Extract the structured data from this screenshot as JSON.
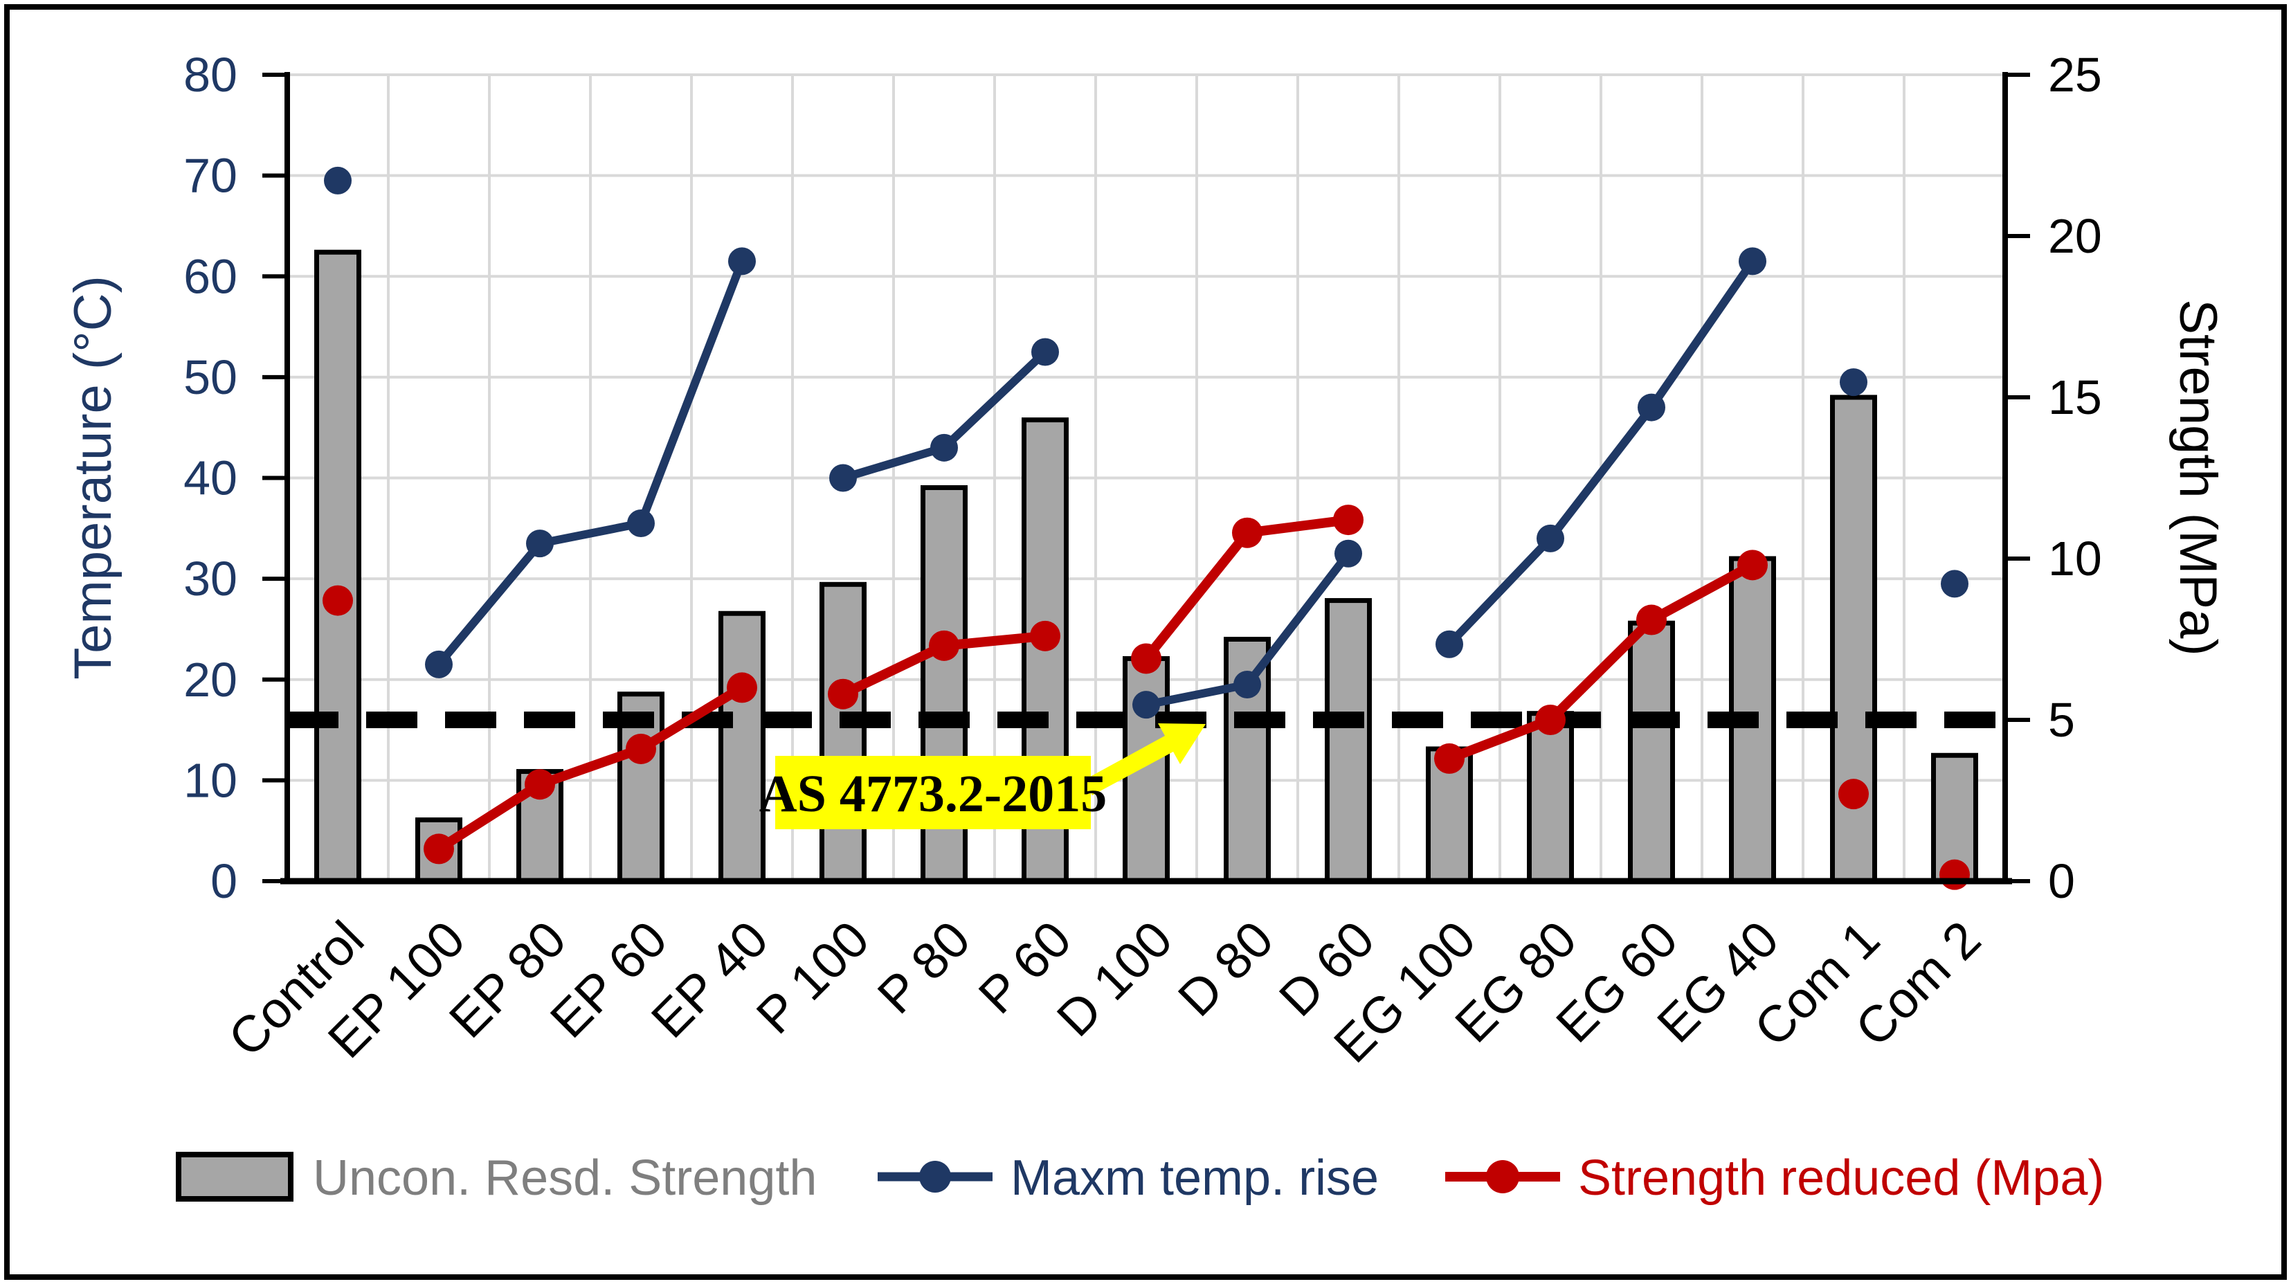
{
  "figure": {
    "background": "#ffffff",
    "border_color": "#000000"
  },
  "chart_data": {
    "type": "bar+line combo, dual axis",
    "categories": [
      "Control",
      "EP 100",
      "EP 80",
      "EP 60",
      "EP 40",
      "P 100",
      "P 80",
      "P 60",
      "D 100",
      "D 80",
      "D 60",
      "EG 100",
      "EG 80",
      "EG 60",
      "EG 40",
      "Com 1",
      "Com 2"
    ],
    "series": [
      {
        "name": "Uncon. Resd. Strength",
        "type": "bar",
        "axis": "right",
        "unit": "MPa",
        "color": "#a6a6a6",
        "border_color": "#000000",
        "values": [
          19.5,
          1.9,
          3.4,
          5.8,
          8.3,
          9.2,
          12.2,
          14.3,
          6.9,
          7.5,
          8.7,
          4.1,
          5.2,
          8.0,
          10.0,
          15.0,
          3.9
        ]
      },
      {
        "name": "Maxm temp. rise",
        "type": "line",
        "axis": "left",
        "unit": "°C",
        "color": "#1f3864",
        "values": [
          69.5,
          21.5,
          33.5,
          35.5,
          61.5,
          40.0,
          43.0,
          52.5,
          17.5,
          19.5,
          32.5,
          23.5,
          34.0,
          47.0,
          61.5,
          49.5,
          29.5
        ]
      },
      {
        "name": "Strength reduced (Mpa)",
        "type": "line",
        "axis": "right",
        "unit": "MPa",
        "color": "#c00000",
        "values": [
          8.7,
          1.0,
          3.0,
          4.1,
          6.0,
          5.8,
          7.3,
          7.6,
          6.9,
          10.8,
          11.2,
          3.8,
          5.0,
          8.1,
          9.8,
          2.7,
          0.2
        ]
      }
    ],
    "line_segments": [
      [
        0
      ],
      [
        1,
        2,
        3,
        4
      ],
      [
        5,
        6,
        7
      ],
      [
        8,
        9,
        10
      ],
      [
        11,
        12,
        13,
        14
      ],
      [
        15
      ],
      [
        16
      ]
    ],
    "left_axis": {
      "title": "Temperature (°C)",
      "min": 0,
      "max": 80,
      "step": 10,
      "ticks": [
        "0",
        "10",
        "20",
        "30",
        "40",
        "50",
        "60",
        "70",
        "80"
      ],
      "color": "#1f3864"
    },
    "right_axis": {
      "title": "Strength (MPa)",
      "min": 0,
      "max": 25,
      "step": 5,
      "ticks": [
        "0",
        "5",
        "10",
        "15",
        "20",
        "25"
      ],
      "color": "#000000"
    },
    "threshold": {
      "label": "AS 4773.2-2015",
      "value_mpa": 5,
      "equivalent_c": 16,
      "line_style": "dashed",
      "line_color": "#000000",
      "highlight_color": "#ffff00",
      "arrow_color": "#ffff00"
    },
    "legend": [
      {
        "label": "Uncon. Resd. Strength",
        "color": "#7f7f7f",
        "swatch": "bar"
      },
      {
        "label": "Maxm temp. rise",
        "color": "#1f3864",
        "swatch": "line-dot"
      },
      {
        "label": "Strength reduced (Mpa)",
        "color": "#c00000",
        "swatch": "line-dot"
      }
    ],
    "grid": {
      "show": true,
      "color": "#d9d9d9"
    }
  }
}
